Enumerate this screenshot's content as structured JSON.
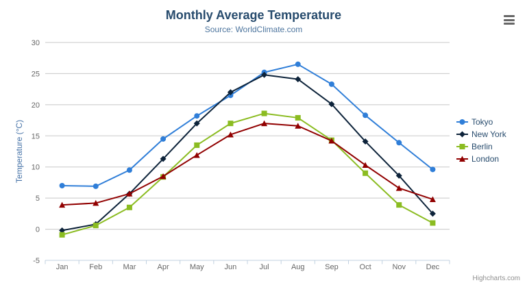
{
  "chart_data": {
    "type": "line",
    "title": "Monthly Average Temperature",
    "subtitle": "Source: WorldClimate.com",
    "categories": [
      "Jan",
      "Feb",
      "Mar",
      "Apr",
      "May",
      "Jun",
      "Jul",
      "Aug",
      "Sep",
      "Oct",
      "Nov",
      "Dec"
    ],
    "xlabel": "",
    "ylabel": "Temperature (°C)",
    "ylim": [
      -5,
      30
    ],
    "yticks": [
      -5,
      0,
      5,
      10,
      15,
      20,
      25,
      30
    ],
    "grid": true,
    "legend_position": "right-middle",
    "series": [
      {
        "name": "Tokyo",
        "color": "#2f7ed8",
        "marker": "circle",
        "values": [
          7.0,
          6.9,
          9.5,
          14.5,
          18.2,
          21.5,
          25.2,
          26.5,
          23.3,
          18.3,
          13.9,
          9.6
        ]
      },
      {
        "name": "New York",
        "color": "#0d233a",
        "marker": "diamond",
        "values": [
          -0.2,
          0.8,
          5.7,
          11.3,
          17.0,
          22.0,
          24.8,
          24.1,
          20.1,
          14.1,
          8.6,
          2.5
        ]
      },
      {
        "name": "Berlin",
        "color": "#8bbc21",
        "marker": "square",
        "values": [
          -0.9,
          0.6,
          3.5,
          8.4,
          13.5,
          17.0,
          18.6,
          17.9,
          14.3,
          9.0,
          3.9,
          1.0
        ]
      },
      {
        "name": "London",
        "color": "#910000",
        "marker": "triangle",
        "values": [
          3.9,
          4.2,
          5.7,
          8.5,
          11.9,
          15.2,
          17.0,
          16.6,
          14.2,
          10.3,
          6.6,
          4.8
        ]
      }
    ]
  },
  "credits": {
    "label": "Highcharts.com"
  },
  "export": {
    "icon": "hamburger-icon"
  },
  "theme": {
    "title_color": "#274b6d",
    "subtitle_color": "#4d759e",
    "y_axis_title_color": "#4572a7",
    "axis_label_color": "#666666",
    "grid_color": "#c8c8c8",
    "axis_line_color": "#c0d0e0",
    "legend_text_color": "#274b6d",
    "credits_color": "#909090",
    "menu_icon_color": "#666666",
    "background_color": "#ffffff"
  }
}
